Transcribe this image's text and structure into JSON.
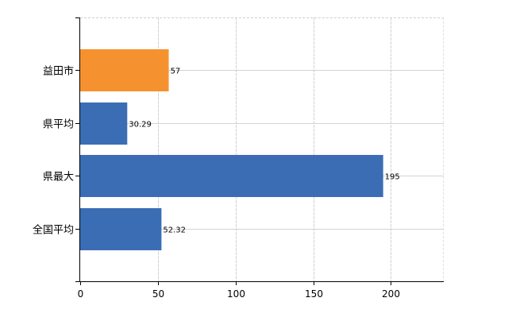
{
  "chart_data": {
    "type": "bar",
    "orientation": "horizontal",
    "categories": [
      "益田市",
      "県平均",
      "県最大",
      "全国平均"
    ],
    "values": [
      57,
      30.29,
      195,
      52.32
    ],
    "value_labels": [
      "57",
      "30.29",
      "195",
      "52.32"
    ],
    "colors": [
      "#f5922f",
      "#3b6db5",
      "#3b6db5",
      "#3b6db5"
    ],
    "xlim": [
      0,
      234
    ],
    "xticks": [
      0,
      50,
      100,
      150,
      200
    ],
    "xtick_labels": [
      "0",
      "50",
      "100",
      "150",
      "200"
    ],
    "grid": true,
    "title": "",
    "xlabel": "",
    "ylabel": ""
  }
}
